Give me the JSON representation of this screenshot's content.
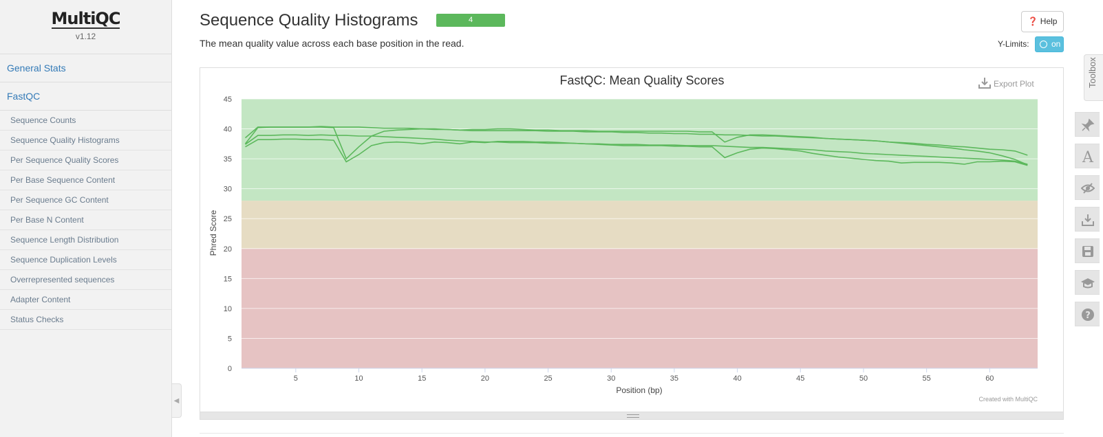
{
  "sidebar": {
    "brand": "MultiQC",
    "version": "v1.12",
    "main_items": [
      {
        "label": "General Stats"
      },
      {
        "label": "FastQC"
      }
    ],
    "sub_items": [
      {
        "label": "Sequence Counts"
      },
      {
        "label": "Sequence Quality Histograms"
      },
      {
        "label": "Per Sequence Quality Scores"
      },
      {
        "label": "Per Base Sequence Content"
      },
      {
        "label": "Per Sequence GC Content"
      },
      {
        "label": "Per Base N Content"
      },
      {
        "label": "Sequence Length Distribution"
      },
      {
        "label": "Sequence Duplication Levels"
      },
      {
        "label": "Overrepresented sequences"
      },
      {
        "label": "Adapter Content"
      },
      {
        "label": "Status Checks"
      }
    ]
  },
  "section": {
    "title": "Sequence Quality Histograms",
    "badge": "4",
    "description": "The mean quality value across each base position in the read.",
    "help_label": "Help",
    "ylimits_label": "Y-Limits:",
    "ylimits_state": "on"
  },
  "plot": {
    "export_label": "Export Plot",
    "credit": "Created with MultiQC"
  },
  "toolbox": {
    "label": "Toolbox",
    "buttons": [
      "pin-icon",
      "font-icon",
      "eye-slash-icon",
      "download-icon",
      "save-icon",
      "graduation-cap-icon",
      "question-icon"
    ]
  },
  "chart_data": {
    "type": "line",
    "title": "FastQC: Mean Quality Scores",
    "xlabel": "Position (bp)",
    "ylabel": "Phred Score",
    "xlim": [
      0.7,
      63.8
    ],
    "ylim": [
      0,
      45
    ],
    "xticks": [
      5,
      10,
      15,
      20,
      25,
      30,
      35,
      40,
      45,
      50,
      55,
      60
    ],
    "yticks": [
      0,
      5,
      10,
      15,
      20,
      25,
      30,
      35,
      40,
      45
    ],
    "bands": [
      {
        "from": 0,
        "to": 20,
        "color": "#e6c3c3"
      },
      {
        "from": 20,
        "to": 28,
        "color": "#e6dcc3"
      },
      {
        "from": 28,
        "to": 45,
        "color": "#c3e6c3"
      }
    ],
    "grid": true,
    "line_color": "#5cb85c",
    "x": [
      1,
      2,
      3,
      4,
      5,
      6,
      7,
      8,
      9,
      10,
      11,
      12,
      13,
      14,
      15,
      16,
      17,
      18,
      19,
      20,
      21,
      22,
      23,
      24,
      25,
      26,
      27,
      28,
      29,
      30,
      31,
      32,
      33,
      34,
      35,
      36,
      37,
      38,
      39,
      40,
      41,
      42,
      43,
      44,
      45,
      46,
      47,
      48,
      49,
      50,
      51,
      52,
      53,
      54,
      55,
      56,
      57,
      58,
      59,
      60,
      61,
      62,
      63
    ],
    "series": [
      {
        "values": [
          38.5,
          40.3,
          40.3,
          40.3,
          40.3,
          40.3,
          40.4,
          40.3,
          40.3,
          40.3,
          40.2,
          40.1,
          40.1,
          40.1,
          40.0,
          39.9,
          39.9,
          39.8,
          39.7,
          39.7,
          39.7,
          39.7,
          39.7,
          39.7,
          39.6,
          39.6,
          39.6,
          39.5,
          39.5,
          39.5,
          39.4,
          39.4,
          39.3,
          39.3,
          39.2,
          39.2,
          39.1,
          39.1,
          39.0,
          39.0,
          38.9,
          38.8,
          38.8,
          38.7,
          38.6,
          38.5,
          38.4,
          38.3,
          38.2,
          38.1,
          38.0,
          37.8,
          37.7,
          37.6,
          37.4,
          37.3,
          37.1,
          37.0,
          36.8,
          36.6,
          36.5,
          36.3,
          35.6
        ]
      },
      {
        "values": [
          37.4,
          38.9,
          38.9,
          39.0,
          39.0,
          38.9,
          39.0,
          38.9,
          38.9,
          38.8,
          38.8,
          38.7,
          38.6,
          38.5,
          38.4,
          38.3,
          38.1,
          38.0,
          37.9,
          37.8,
          37.8,
          37.7,
          37.7,
          37.7,
          37.6,
          37.6,
          37.6,
          37.5,
          37.5,
          37.4,
          37.4,
          37.4,
          37.3,
          37.3,
          37.3,
          37.2,
          37.2,
          37.2,
          37.1,
          37.0,
          36.9,
          36.9,
          36.8,
          36.7,
          36.6,
          36.5,
          36.3,
          36.2,
          36.1,
          35.9,
          35.8,
          35.7,
          35.6,
          35.5,
          35.4,
          35.3,
          35.2,
          35.1,
          35.0,
          34.9,
          34.8,
          34.6,
          34.1
        ]
      },
      {
        "values": [
          37.0,
          38.2,
          38.2,
          38.3,
          38.3,
          38.2,
          38.2,
          38.1,
          34.5,
          35.7,
          37.2,
          37.7,
          37.8,
          37.7,
          37.5,
          37.8,
          37.7,
          37.5,
          37.8,
          37.7,
          37.9,
          37.9,
          37.9,
          37.8,
          37.8,
          37.7,
          37.6,
          37.5,
          37.4,
          37.3,
          37.2,
          37.2,
          37.2,
          37.2,
          37.1,
          37.1,
          37.0,
          37.0,
          35.2,
          36.0,
          36.6,
          36.8,
          36.7,
          36.5,
          36.3,
          35.9,
          35.6,
          35.3,
          35.1,
          34.9,
          34.7,
          34.6,
          34.3,
          34.4,
          34.4,
          34.4,
          34.3,
          34.1,
          34.5,
          34.5,
          34.6,
          34.5,
          33.9
        ]
      },
      {
        "values": [
          37.5,
          40.2,
          40.3,
          40.3,
          40.3,
          40.3,
          40.3,
          40.2,
          35.0,
          37.0,
          38.8,
          39.6,
          39.8,
          39.9,
          40.0,
          40.0,
          39.9,
          39.8,
          39.9,
          39.9,
          40.0,
          40.0,
          39.9,
          39.8,
          39.8,
          39.7,
          39.7,
          39.7,
          39.6,
          39.6,
          39.6,
          39.6,
          39.6,
          39.6,
          39.6,
          39.6,
          39.5,
          39.5,
          37.8,
          38.6,
          39.0,
          39.0,
          38.9,
          38.8,
          38.7,
          38.6,
          38.4,
          38.3,
          38.2,
          38.1,
          38.0,
          37.8,
          37.6,
          37.4,
          37.2,
          37.0,
          36.8,
          36.5,
          36.3,
          36.0,
          35.5,
          34.9,
          34.0
        ]
      }
    ]
  }
}
